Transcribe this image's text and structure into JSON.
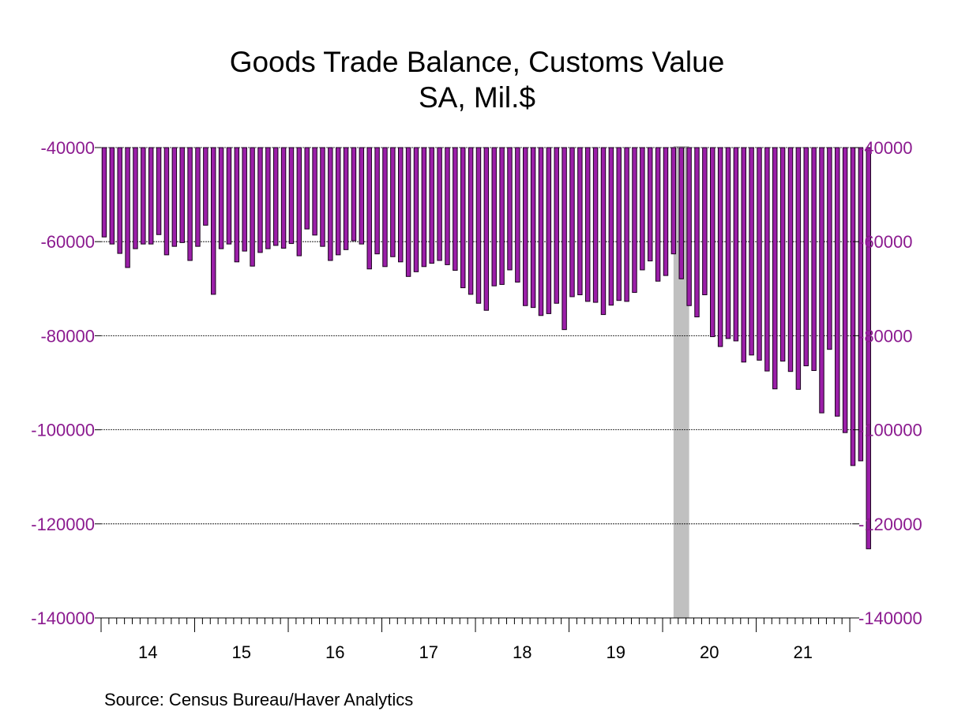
{
  "chart_data": {
    "type": "bar",
    "title": "Goods Trade Balance, Customs Value",
    "subtitle": "SA, Mil.$",
    "source": "Source:  Census Bureau/Haver Analytics",
    "ylim": [
      -140000,
      -40000
    ],
    "y_ticks": [
      -40000,
      -60000,
      -80000,
      -100000,
      -120000,
      -140000
    ],
    "y_tick_labels": [
      "-40000",
      "-60000",
      "-80000",
      "-100000",
      "-120000",
      "-140000"
    ],
    "x_tick_labels": [
      "14",
      "15",
      "16",
      "17",
      "18",
      "19",
      "20",
      "21"
    ],
    "x_start": "2014-01",
    "frequency": "monthly",
    "recession_shading": {
      "start": "2020-02",
      "end": "2020-04"
    },
    "grid": true,
    "colors": {
      "bar": "#9b1fa8",
      "bar_edge": "#1a001d",
      "axis_text": "#8b1a8f",
      "recession": "#c0c0c0",
      "grid": "#000000"
    },
    "series": [
      {
        "values": [
          -59000,
          -60500,
          -62500,
          -65500,
          -61500,
          -60500,
          -60500,
          -58500,
          -62800,
          -61000,
          -60200,
          -64000,
          -61000,
          -56500,
          -71200,
          -61500,
          -60500,
          -64300,
          -62000,
          -65200,
          -62300,
          -61500,
          -60800,
          -61400,
          -60400,
          -63000,
          -57300,
          -58600,
          -61000,
          -64000,
          -62800,
          -61700,
          -59800,
          -60500,
          -65800,
          -62600,
          -65300,
          -63200,
          -64300,
          -67400,
          -66400,
          -65300,
          -64600,
          -64000,
          -64900,
          -66100,
          -69800,
          -71200,
          -73100,
          -74600,
          -69400,
          -69100,
          -66000,
          -68600,
          -73600,
          -74000,
          -75700,
          -75300,
          -73100,
          -78700,
          -71700,
          -71300,
          -72700,
          -72900,
          -75500,
          -73500,
          -72500,
          -72700,
          -70800,
          -66000,
          -64100,
          -68400,
          -67200,
          -62600,
          -67900,
          -73600,
          -76000,
          -71300,
          -80200,
          -82300,
          -80600,
          -81100,
          -85600,
          -84100,
          -85200,
          -87500,
          -91300,
          -85400,
          -87600,
          -91400,
          -86400,
          -87400,
          -96400,
          -82900,
          -97100,
          -100600,
          -107600,
          -106600,
          -125300
        ]
      }
    ]
  }
}
